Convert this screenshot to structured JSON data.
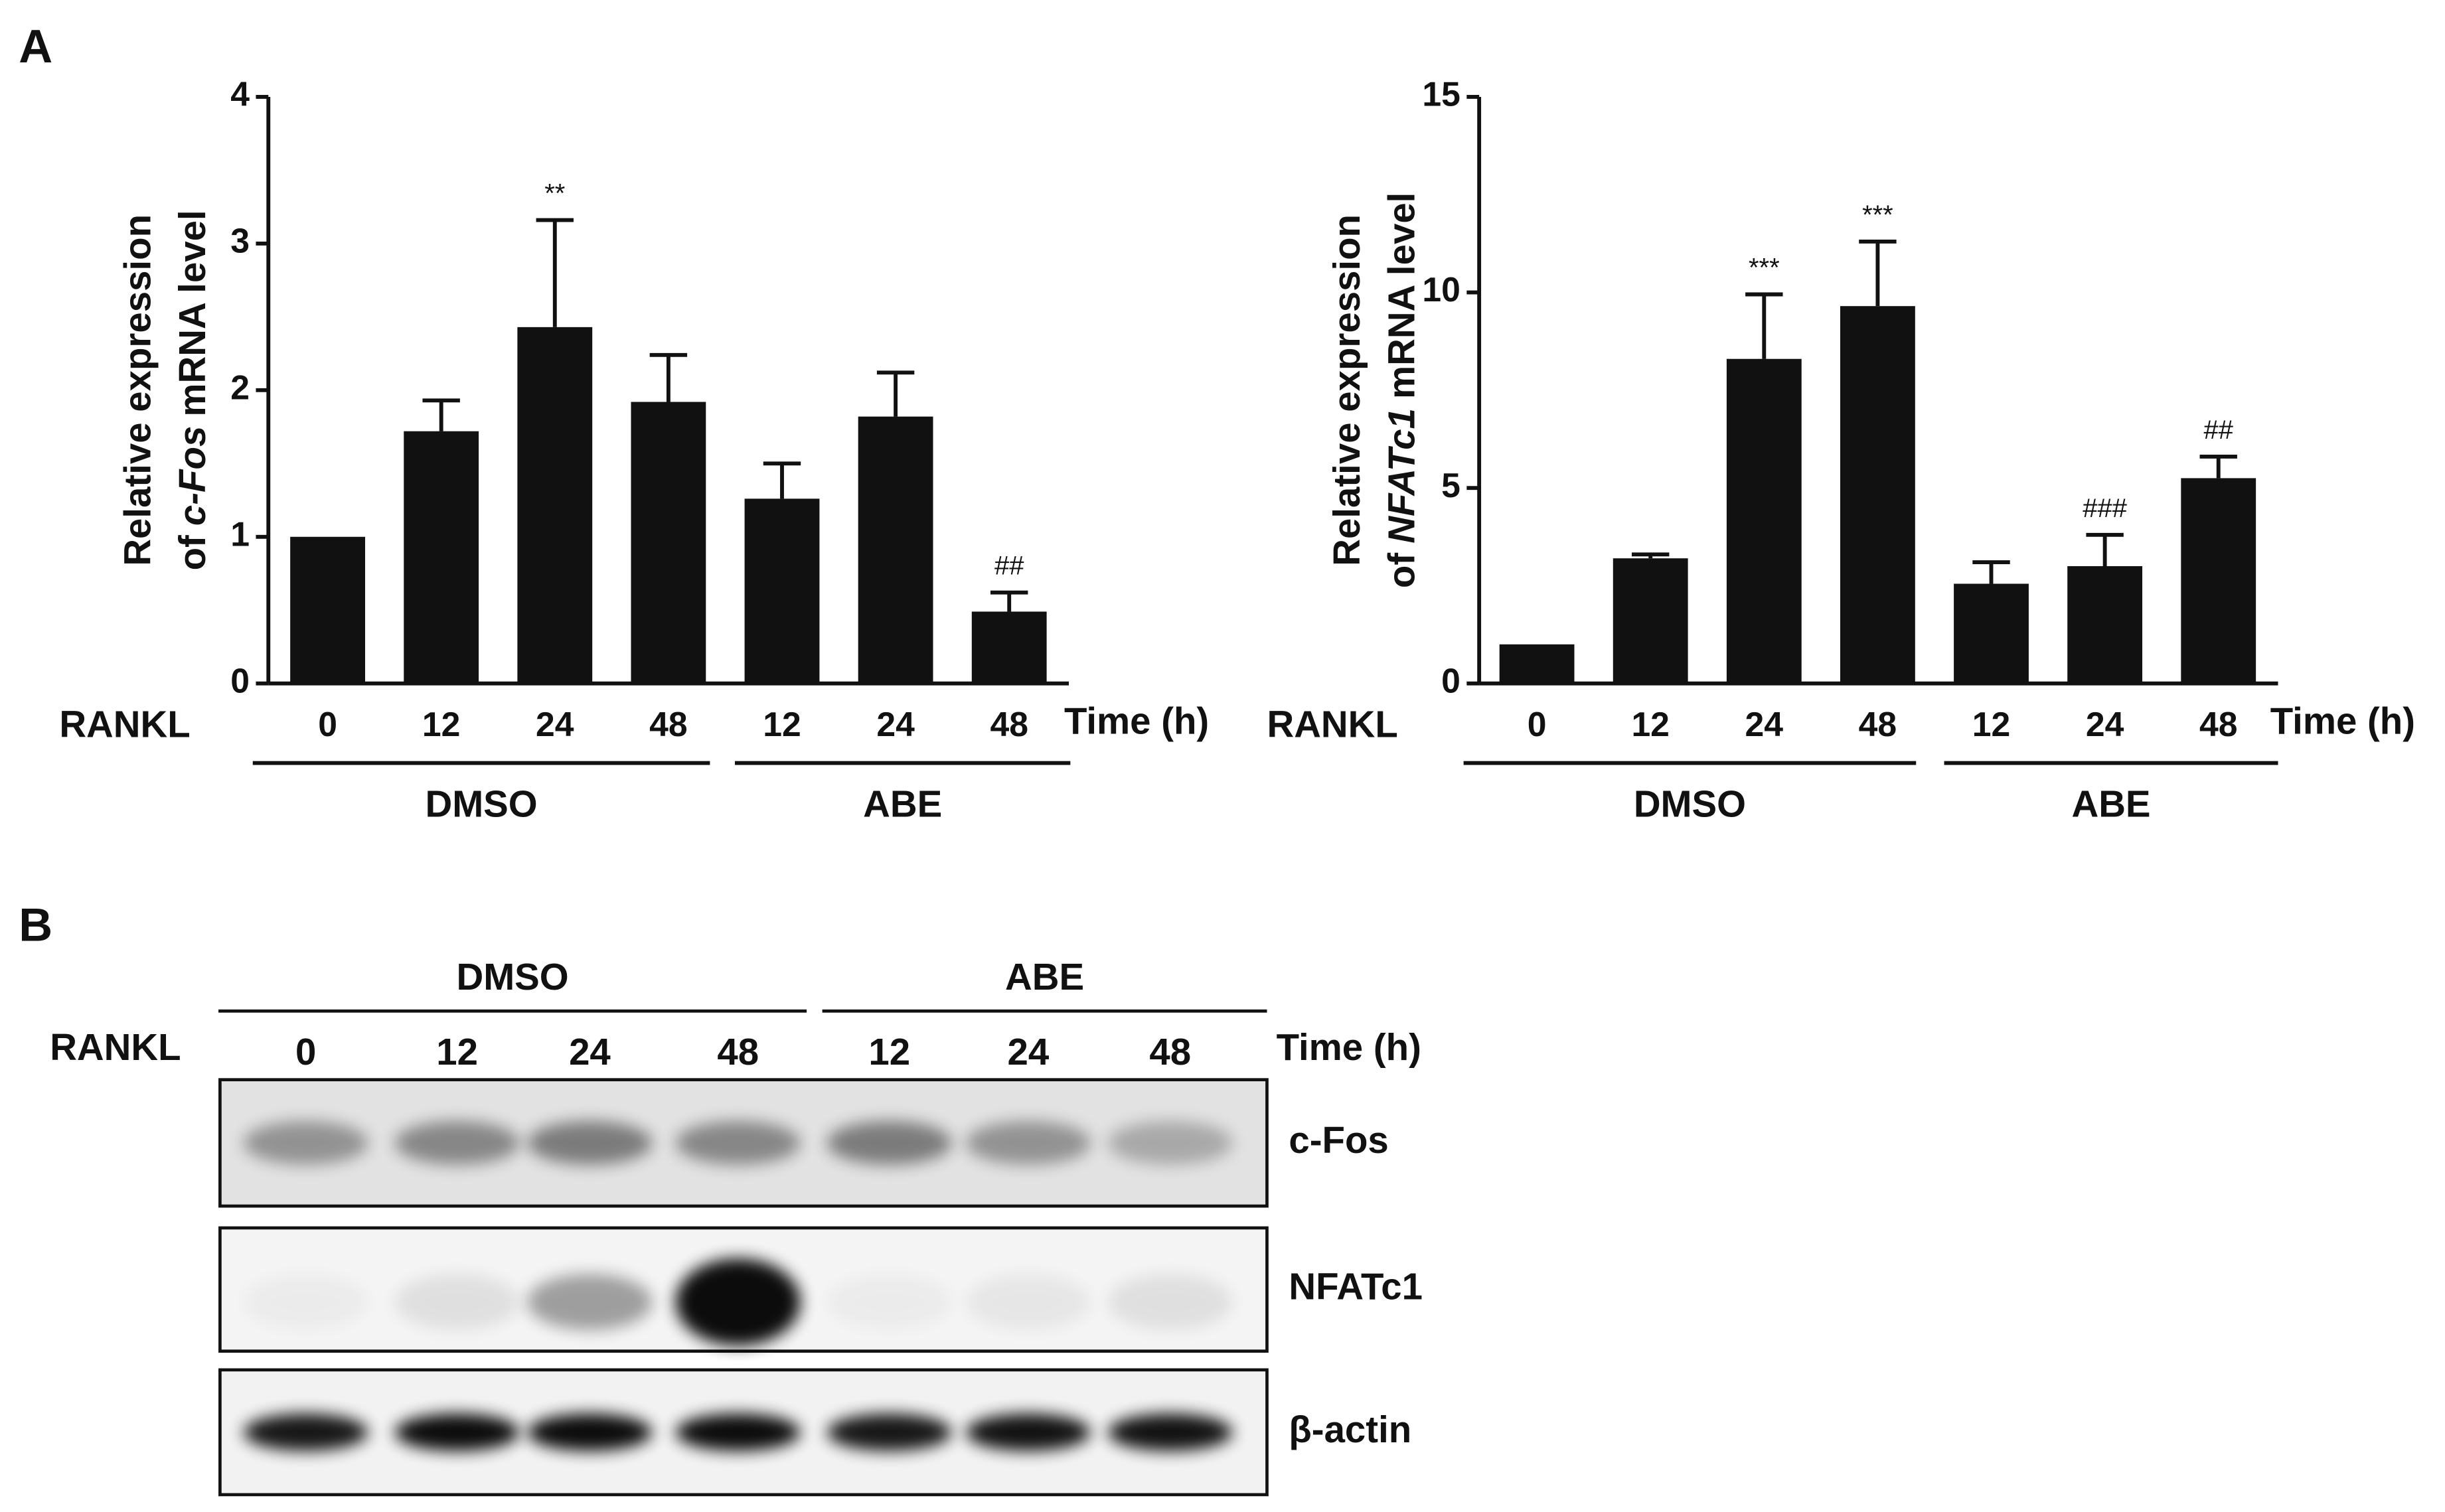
{
  "panel_labels": [
    "A",
    "B"
  ],
  "chart_data": [
    {
      "type": "bar",
      "ylabel": [
        "Relative expression",
        "of",
        "c-Fos",
        "mRNA level"
      ],
      "row_label": "RANKL",
      "xlabel": "Time (h)",
      "categories": [
        "0",
        "12",
        "24",
        "48",
        "12",
        "24",
        "48"
      ],
      "groups": [
        "DMSO",
        "ABE"
      ],
      "values": [
        1.0,
        1.72,
        2.43,
        1.92,
        1.26,
        1.82,
        0.49
      ],
      "errors": [
        null,
        0.21,
        0.73,
        0.32,
        0.24,
        0.3,
        0.13
      ],
      "annotations": [
        null,
        null,
        "**",
        null,
        null,
        null,
        "##"
      ],
      "color": "#111111",
      "ylim": [
        0,
        4
      ],
      "yticks": [
        0,
        1,
        2,
        3,
        4
      ]
    },
    {
      "type": "bar",
      "ylabel": [
        "Relative expression",
        "of",
        "NFATc1",
        "mRNA level"
      ],
      "row_label": "RANKL",
      "xlabel": "Time (h)",
      "categories": [
        "0",
        "12",
        "24",
        "48",
        "12",
        "24",
        "48"
      ],
      "groups": [
        "DMSO",
        "ABE"
      ],
      "values": [
        1.0,
        3.2,
        8.3,
        9.65,
        2.55,
        3.0,
        5.25
      ],
      "errors": [
        null,
        0.1,
        1.65,
        1.65,
        0.55,
        0.8,
        0.55
      ],
      "annotations": [
        null,
        null,
        "***",
        "***",
        null,
        "###",
        "##"
      ],
      "color": "#111111",
      "ylim": [
        0,
        15
      ],
      "yticks": [
        0,
        5,
        10,
        15
      ]
    }
  ],
  "blot": {
    "row_label": "RANKL",
    "time_label": "Time (h)",
    "groups": [
      "DMSO",
      "ABE"
    ],
    "lanes": [
      "0",
      "12",
      "24",
      "48",
      "12",
      "24",
      "48"
    ],
    "bands": [
      "c-Fos",
      "NFATc1",
      "β-actin"
    ]
  }
}
